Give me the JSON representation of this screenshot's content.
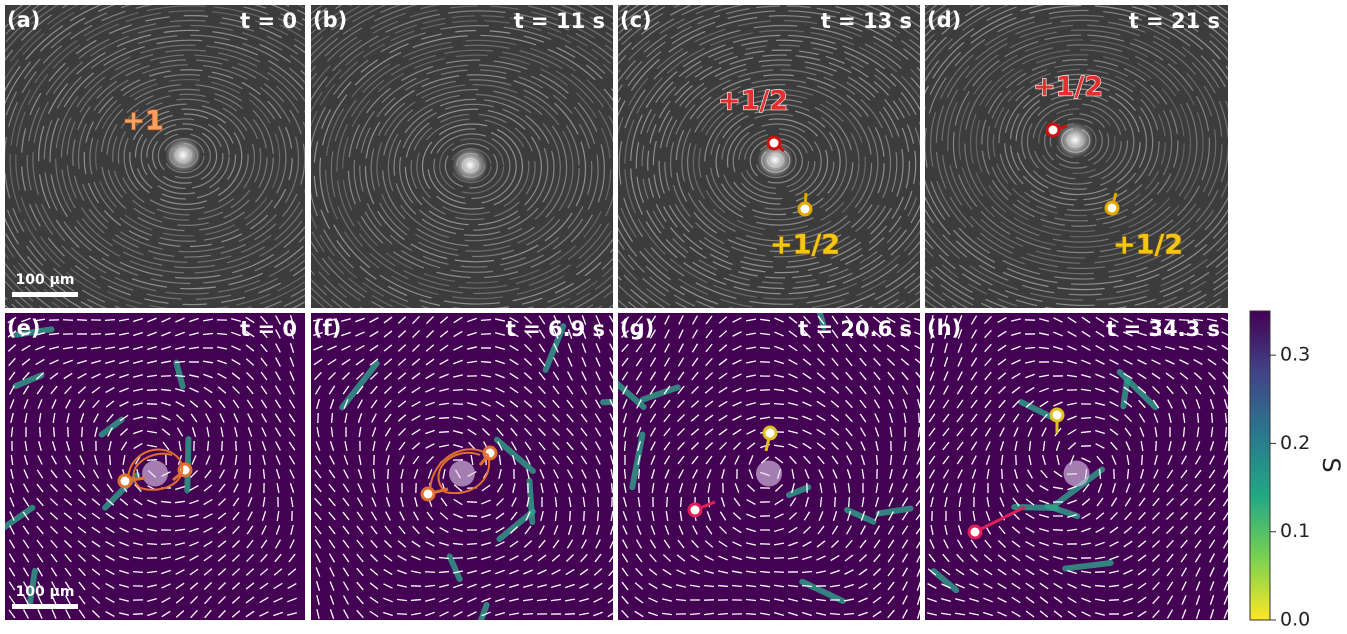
{
  "panels": [
    {
      "label": "(a)",
      "time": "t = 0"
    },
    {
      "label": "(b)",
      "time": "t = 11 s"
    },
    {
      "label": "(c)",
      "time": "t = 13 s"
    },
    {
      "label": "(d)",
      "time": "t = 21 s"
    },
    {
      "label": "(e)",
      "time": "t = 0"
    },
    {
      "label": "(f)",
      "time": "t = 6.9 s"
    },
    {
      "label": "(g)",
      "time": "t = 20.6 s"
    },
    {
      "label": "(h)",
      "time": "t = 34.3 s"
    }
  ],
  "annotations": [
    "+1",
    "+1/2",
    "+1/2",
    "+1/2",
    "+1/2"
  ],
  "scale_bar": "100 µm",
  "colorbar": {
    "label": "S",
    "lim": [
      0,
      0.35
    ],
    "ticks": [
      {
        "value": 0,
        "label": "0.0"
      },
      0.1,
      0.2,
      0.3
    ]
  }
}
